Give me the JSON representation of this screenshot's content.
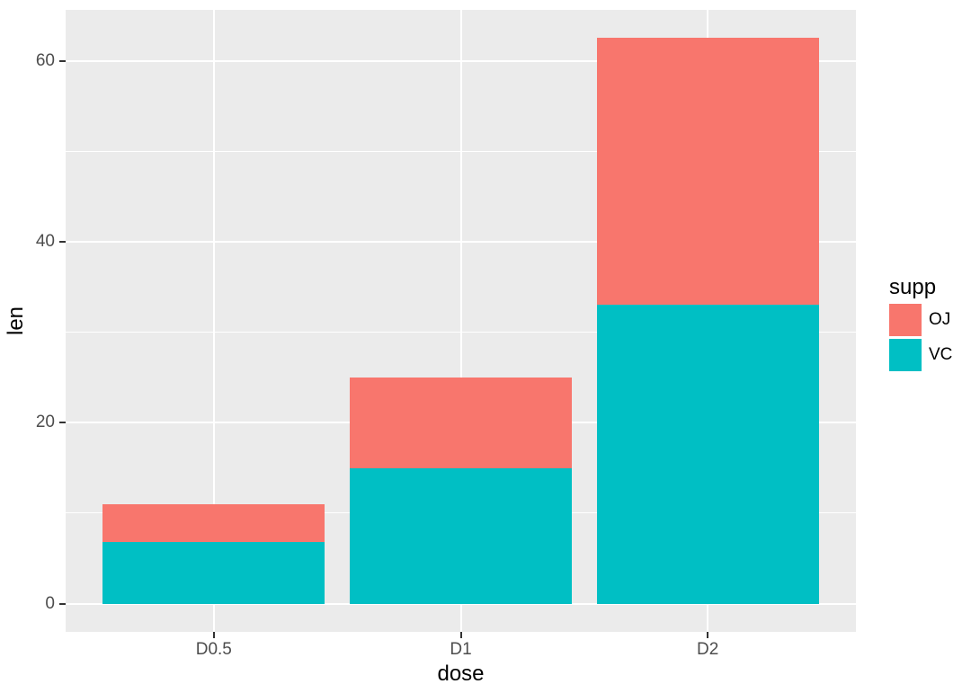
{
  "chart_data": {
    "type": "bar",
    "stacked": true,
    "title": "",
    "xlabel": "dose",
    "ylabel": "len",
    "categories": [
      "D0.5",
      "D1",
      "D2"
    ],
    "series": [
      {
        "name": "OJ",
        "color": "#F8766D",
        "values": [
          4.2,
          10,
          29.5
        ]
      },
      {
        "name": "VC",
        "color": "#00BFC4",
        "values": [
          6.8,
          15,
          33
        ]
      }
    ],
    "stack_bottom_to_top": [
      "VC",
      "OJ"
    ],
    "stack_totals": [
      11,
      25,
      62.5
    ],
    "y_major_ticks": [
      0,
      20,
      40,
      60
    ],
    "y_minor_ticks": [
      10,
      30,
      50
    ],
    "ylim": [
      -3.125,
      65.625
    ],
    "grid": {
      "horizontal": "major+minor",
      "vertical": "major-at-category-centers"
    },
    "legend": {
      "title": "supp",
      "position": "right",
      "items": [
        {
          "label": "OJ",
          "color": "#F8766D"
        },
        {
          "label": "VC",
          "color": "#00BFC4"
        }
      ]
    },
    "theme": {
      "panel_bg": "#EBEBEB",
      "grid_color": "#FFFFFF",
      "tick_text_color": "#4D4D4D",
      "tick_mark_color": "#333333",
      "axis_title_color": "#000000",
      "legend_text_color": "#000000",
      "page_bg": "#FFFFFF"
    }
  }
}
